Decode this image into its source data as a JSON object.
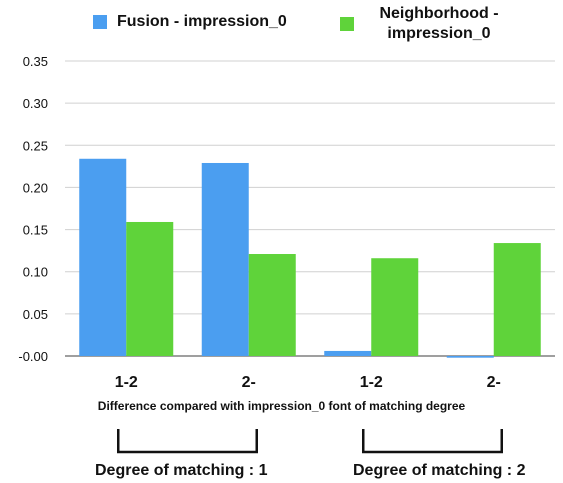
{
  "chart_data": {
    "type": "bar",
    "categories": [
      "1-2",
      "2-",
      "1-2",
      "2-"
    ],
    "series": [
      {
        "name": "Fusion - impression_0",
        "values": [
          0.234,
          0.229,
          0.006,
          -0.002
        ],
        "color": "#4b9ef0"
      },
      {
        "name": "Neighborhood - impression_0",
        "values": [
          0.159,
          0.121,
          0.116,
          0.134
        ],
        "color": "#5fd33a"
      }
    ],
    "ylim": [
      0.0,
      0.35
    ],
    "yticks": [
      "-0.00",
      "0.05",
      "0.10",
      "0.15",
      "0.20",
      "0.25",
      "0.30",
      "0.35"
    ],
    "ytick_values": [
      0.0,
      0.05,
      0.1,
      0.15,
      0.2,
      0.25,
      0.3,
      0.35
    ],
    "xlabel": "Difference compared with impression_0 font of matching degree",
    "legend": {
      "position": "top"
    },
    "grid": true,
    "groups": [
      {
        "label": "Degree of matching : 1",
        "categories": [
          0,
          1
        ]
      },
      {
        "label": "Degree of matching : 2",
        "categories": [
          2,
          3
        ]
      }
    ]
  },
  "legend": {
    "fusion": "Fusion - impression_0",
    "neighborhood_line1": "Neighborhood -",
    "neighborhood_line2": "impression_0"
  }
}
